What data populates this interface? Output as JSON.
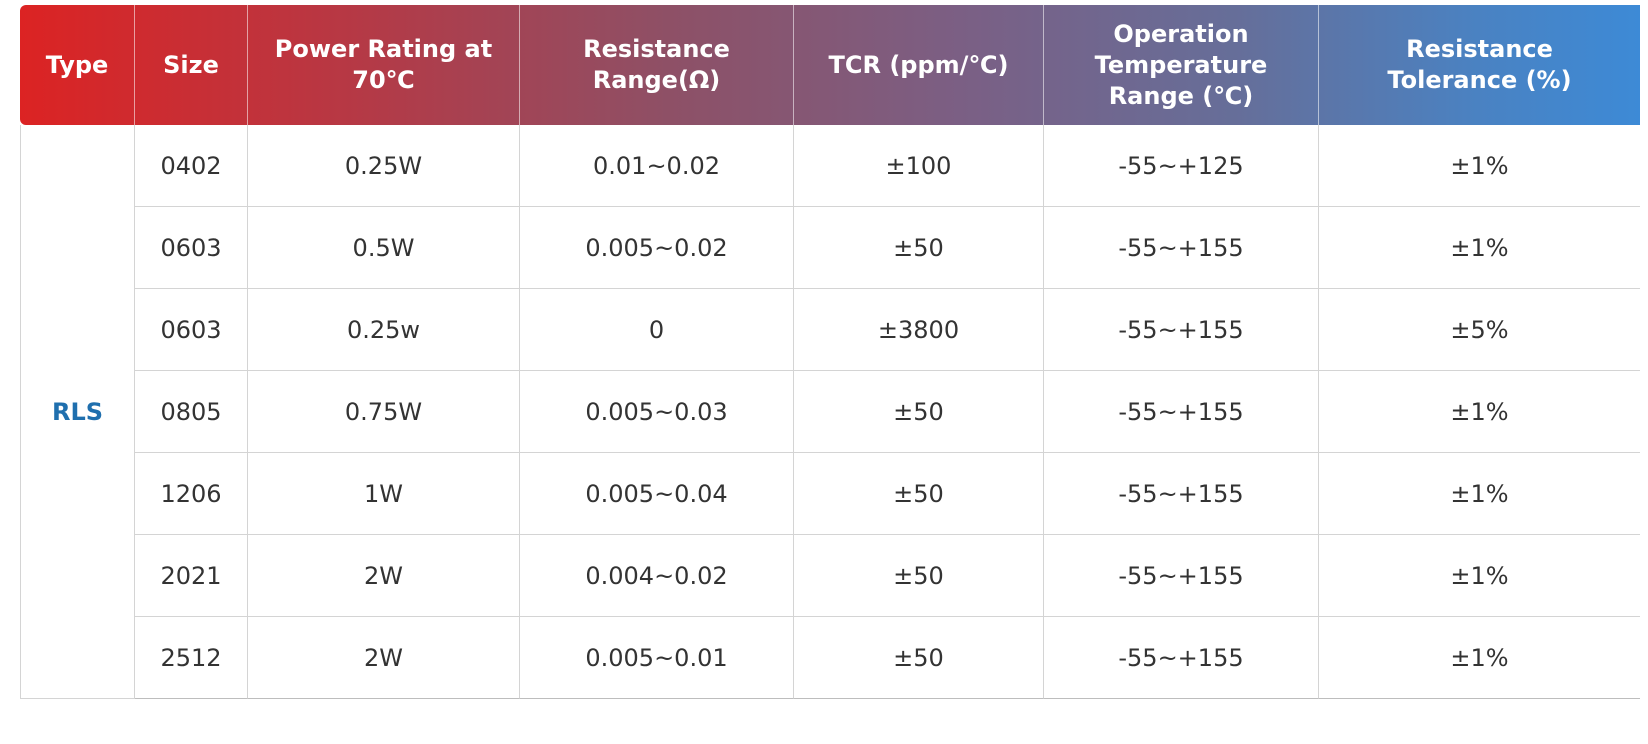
{
  "table": {
    "headers": [
      "Type",
      "Size",
      "Power Rating at 70℃",
      "Resistance Range(Ω)",
      "TCR (ppm/℃)",
      "Operation Temperature Range (℃)",
      "Resistance Tolerance (%)"
    ],
    "type": "RLS",
    "rows": [
      {
        "size": "0402",
        "power": "0.25W",
        "resistance": "0.01~0.02",
        "tcr": "±100",
        "temperature": "-55~+125",
        "tolerance": "±1%"
      },
      {
        "size": "0603",
        "power": "0.5W",
        "resistance": "0.005~0.02",
        "tcr": "±50",
        "temperature": "-55~+155",
        "tolerance": "±1%"
      },
      {
        "size": "0603",
        "power": "0.25w",
        "resistance": "0",
        "tcr": "±3800",
        "temperature": "-55~+155",
        "tolerance": "±5%"
      },
      {
        "size": "0805",
        "power": "0.75W",
        "resistance": "0.005~0.03",
        "tcr": "±50",
        "temperature": "-55~+155",
        "tolerance": "±1%"
      },
      {
        "size": "1206",
        "power": "1W",
        "resistance": "0.005~0.04",
        "tcr": "±50",
        "temperature": "-55~+155",
        "tolerance": "±1%"
      },
      {
        "size": "2021",
        "power": "2W",
        "resistance": "0.004~0.02",
        "tcr": "±50",
        "temperature": "-55~+155",
        "tolerance": "±1%"
      },
      {
        "size": "2512",
        "power": "2W",
        "resistance": "0.005~0.01",
        "tcr": "±50",
        "temperature": "-55~+155",
        "tolerance": "±1%"
      }
    ]
  }
}
